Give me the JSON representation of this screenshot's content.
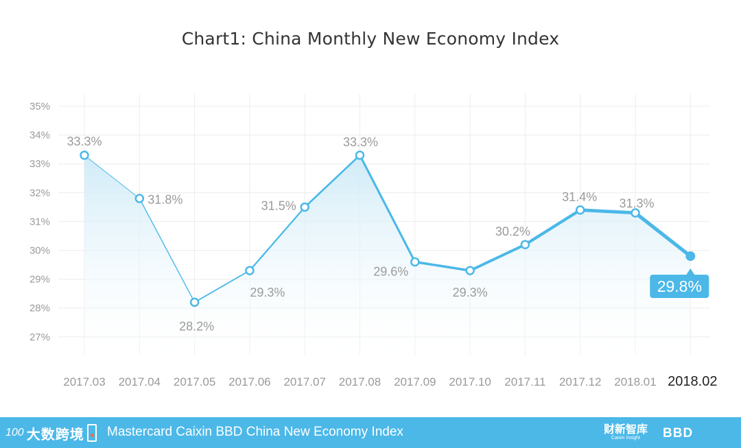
{
  "chart_data": {
    "type": "line",
    "title": "Chart1: China Monthly New Economy Index",
    "categories": [
      "2017.03",
      "2017.04",
      "2017.05",
      "2017.06",
      "2017.07",
      "2017.08",
      "2017.09",
      "2017.10",
      "2017.11",
      "2017.12",
      "2018.01",
      "2018.02"
    ],
    "series": [
      {
        "values": [
          33.3,
          31.8,
          28.2,
          29.3,
          31.5,
          33.3,
          29.6,
          29.3,
          30.2,
          31.4,
          31.3,
          29.8
        ]
      }
    ],
    "data_labels": [
      "33.3%",
      "31.8%",
      "28.2%",
      "29.3%",
      "31.5%",
      "33.3%",
      "29.6%",
      "29.3%",
      "30.2%",
      "31.4%",
      "31.3%",
      "29.8%"
    ],
    "yticks": [
      "27%",
      "28%",
      "29%",
      "30%",
      "31%",
      "32%",
      "33%",
      "34%",
      "35%"
    ],
    "ylim": [
      27,
      35
    ],
    "grid": true,
    "colors": {
      "line": "#4bb8e8",
      "fill": "#d6eef9",
      "callout": "#4bb8e8",
      "footer": "#4bb8e8"
    }
  },
  "footer": {
    "text": "Mastercard Caixin BBD China New Economy Index",
    "logo_left_mark": "100",
    "logo_left_text": "大数跨境",
    "logo_right1": "财新智库",
    "logo_right1_sub": "Caixin Insight",
    "logo_right2": "BBD"
  }
}
